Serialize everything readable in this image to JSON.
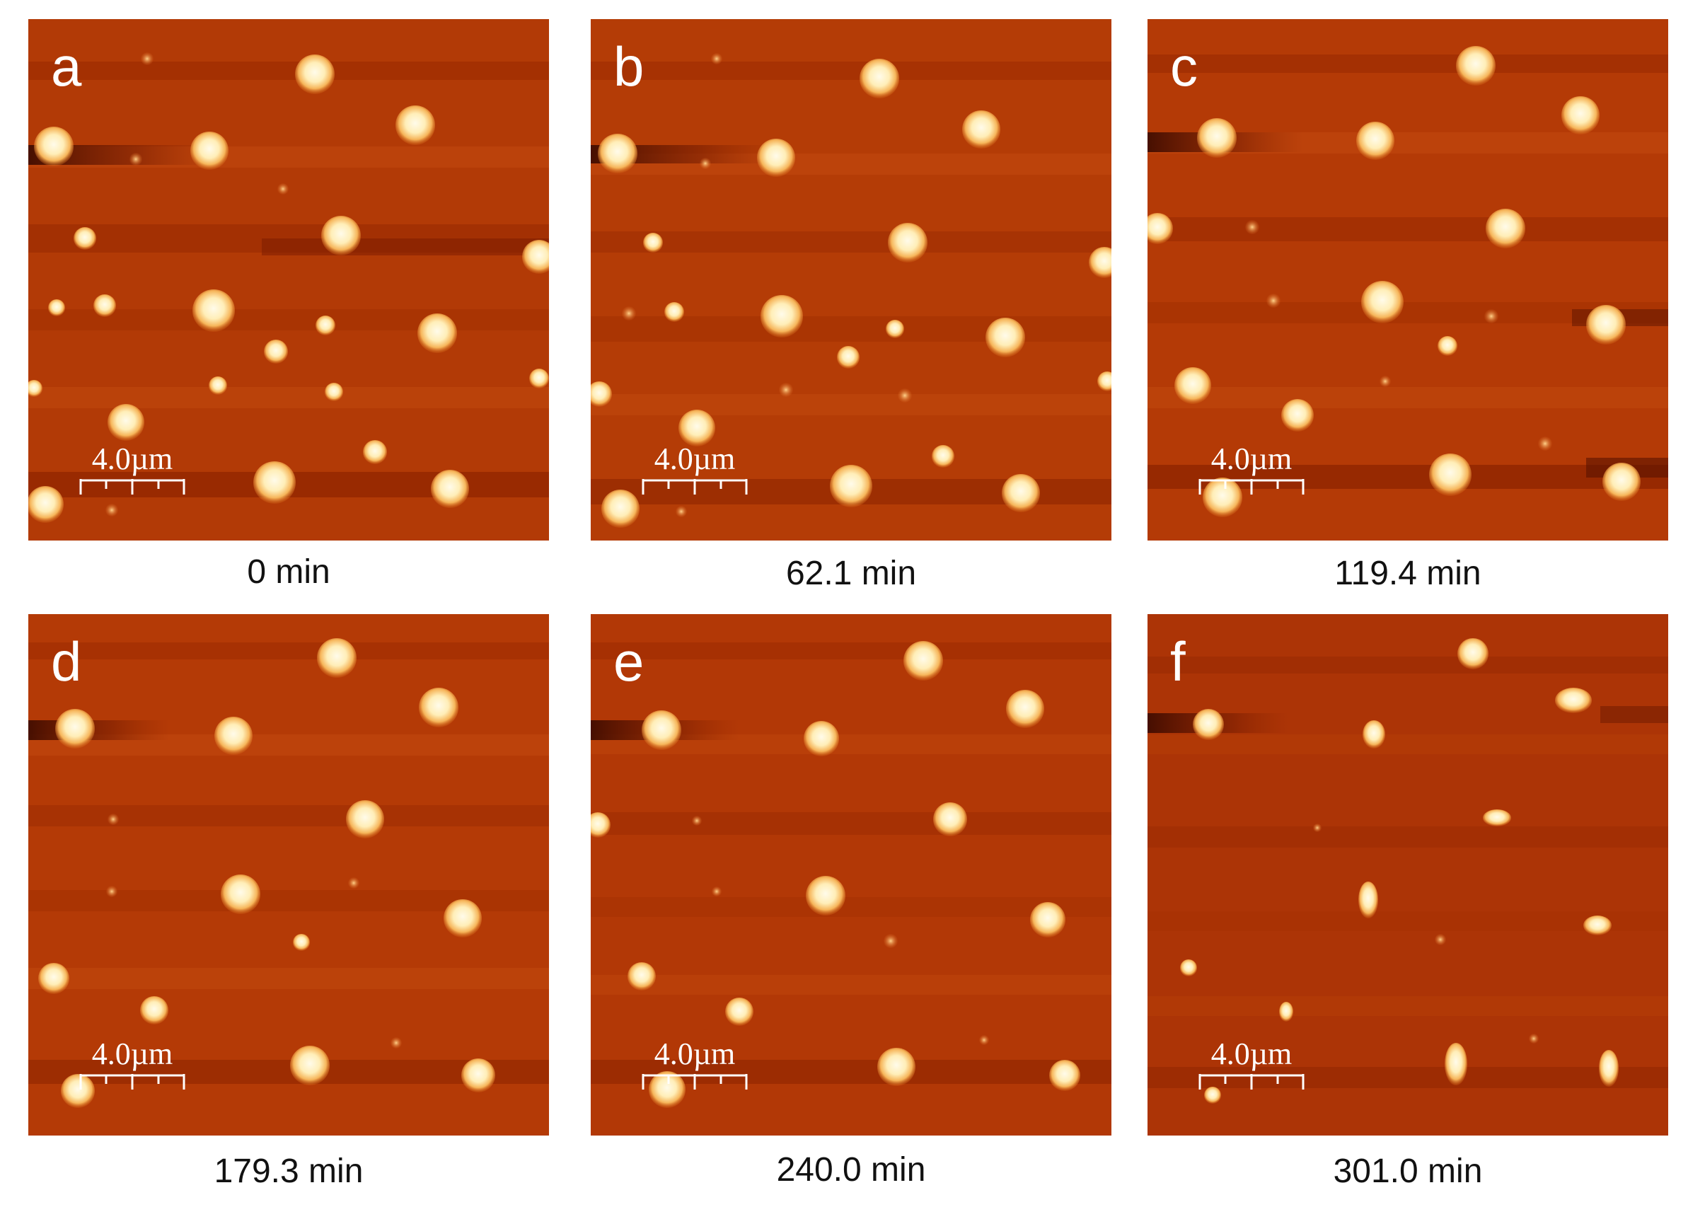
{
  "colors": {
    "substrate": "#b23a06",
    "substrate_light": "#c24a0e",
    "substrate_dark": "#7a1a00",
    "particle_core": "#fff6dc",
    "particle_edge": "#f1a23c",
    "overlay_text": "#ffffff",
    "caption_text": "#111111"
  },
  "panels": [
    {
      "letter": "a",
      "scale": "4.0µm",
      "time": "0 min"
    },
    {
      "letter": "b",
      "scale": "4.0µm",
      "time": "62.1 min"
    },
    {
      "letter": "c",
      "scale": "4.0µm",
      "time": "119.4 min"
    },
    {
      "letter": "d",
      "scale": "4.0µm",
      "time": "179.3 min"
    },
    {
      "letter": "e",
      "scale": "4.0µm",
      "time": "240.0 min"
    },
    {
      "letter": "f",
      "scale": "4.0µm",
      "time": "301.0 min"
    }
  ]
}
